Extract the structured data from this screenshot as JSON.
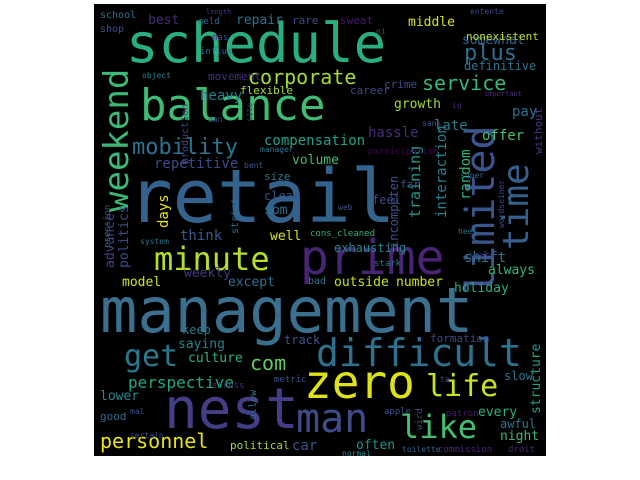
{
  "wordcloud": {
    "background": "#000000",
    "words": [
      {
        "id": "management",
        "text": "management",
        "color": "#3b6f8e"
      },
      {
        "id": "retail",
        "text": "retail",
        "color": "#33638d"
      },
      {
        "id": "schedule",
        "text": "schedule",
        "color": "#29af7f"
      },
      {
        "id": "balance",
        "text": "balance",
        "color": "#3fbc73"
      },
      {
        "id": "nest",
        "text": "nest",
        "color": "#433e85"
      },
      {
        "id": "prime",
        "text": "prime",
        "color": "#482475"
      },
      {
        "id": "zero",
        "text": "zero",
        "color": "#dde318"
      },
      {
        "id": "man",
        "text": "man",
        "color": "#3e4c8a"
      },
      {
        "id": "limited",
        "text": "limited",
        "color": "#3a548c"
      },
      {
        "id": "time",
        "text": "time",
        "color": "#355f8d"
      },
      {
        "id": "weekend",
        "text": "weekend",
        "color": "#3aba76"
      },
      {
        "id": "difficult",
        "text": "difficult",
        "color": "#2d718e"
      },
      {
        "id": "minute",
        "text": "minute",
        "color": "#b5de2b"
      },
      {
        "id": "like",
        "text": "like",
        "color": "#44bf70"
      },
      {
        "id": "life",
        "text": "life",
        "color": "#cae11f"
      },
      {
        "id": "get",
        "text": "get",
        "color": "#2a778e"
      },
      {
        "id": "corporate",
        "text": "corporate",
        "color": "#a2da37"
      },
      {
        "id": "service",
        "text": "service",
        "color": "#37b878"
      },
      {
        "id": "mobility",
        "text": "mobility",
        "color": "#2c738e"
      },
      {
        "id": "plus",
        "text": "plus",
        "color": "#2e6e8e"
      },
      {
        "id": "com",
        "text": "com",
        "color": "#63cb5f"
      },
      {
        "id": "personnel",
        "text": "personnel",
        "color": "#e7e419"
      },
      {
        "id": "perspective",
        "text": "perspective",
        "color": "#22a785"
      },
      {
        "id": "compensation",
        "text": "compensation",
        "color": "#1fa088"
      },
      {
        "id": "repetitive",
        "text": "repetitive",
        "color": "#3e4989"
      },
      {
        "id": "heavy",
        "text": "heavy",
        "color": "#277f8e"
      },
      {
        "id": "growth",
        "text": "growth",
        "color": "#a0da39"
      },
      {
        "id": "hassle",
        "text": "hassle",
        "color": "#472d7b"
      },
      {
        "id": "late",
        "text": "late",
        "color": "#287c8e"
      },
      {
        "id": "offer",
        "text": "offer",
        "color": "#46c06f"
      },
      {
        "id": "pay",
        "text": "pay",
        "color": "#2e6f8e"
      },
      {
        "id": "volume",
        "text": "volume",
        "color": "#3ebc74"
      },
      {
        "id": "repair",
        "text": "repair",
        "color": "#2c718e"
      },
      {
        "id": "best",
        "text": "best",
        "color": "#472c7a"
      },
      {
        "id": "middle",
        "text": "middle",
        "color": "#d5e21a"
      },
      {
        "id": "somewhat",
        "text": "somewhat",
        "color": "#31668e"
      },
      {
        "id": "definitive",
        "text": "definitive",
        "color": "#2a768e"
      },
      {
        "id": "nonexistent",
        "text": "nonexistent",
        "color": "#c2df23"
      },
      {
        "id": "interaction",
        "text": "interaction",
        "color": "#26828e"
      },
      {
        "id": "training",
        "text": "training",
        "color": "#1f988b"
      },
      {
        "id": "random",
        "text": "random",
        "color": "#2fb47c"
      },
      {
        "id": "incompeten",
        "text": "incompeten",
        "color": "#3b528b"
      },
      {
        "id": "shift",
        "text": "shift",
        "color": "#2c728e"
      },
      {
        "id": "always",
        "text": "always",
        "color": "#34b679"
      },
      {
        "id": "holiday",
        "text": "holiday",
        "color": "#26ad81"
      },
      {
        "id": "number",
        "text": "number",
        "color": "#cde11d"
      },
      {
        "id": "outside",
        "text": "outside",
        "color": "#c8e020"
      },
      {
        "id": "except",
        "text": "except",
        "color": "#2d708e"
      },
      {
        "id": "model",
        "text": "model",
        "color": "#d2e21b"
      },
      {
        "id": "weekly",
        "text": "weekly",
        "color": "#443983"
      },
      {
        "id": "think",
        "text": "think",
        "color": "#38598c"
      },
      {
        "id": "days",
        "text": "days",
        "color": "#e5e419"
      },
      {
        "id": "advance",
        "text": "advance",
        "color": "#414487"
      },
      {
        "id": "politics",
        "text": "politics",
        "color": "#3d4e8a"
      },
      {
        "id": "clear",
        "text": "clear",
        "color": "#3b528b"
      },
      {
        "id": "feel",
        "text": "feel",
        "color": "#3e4a89"
      },
      {
        "id": "far",
        "text": "far",
        "color": "#3c4f8a"
      },
      {
        "id": "som",
        "text": "som",
        "color": "#2c738e"
      },
      {
        "id": "well",
        "text": "well",
        "color": "#d8e219"
      },
      {
        "id": "exhausting",
        "text": "exhausting",
        "color": "#24878e"
      },
      {
        "id": "cons_cleaned",
        "text": "cons_cleaned",
        "color": "#2ab07f"
      },
      {
        "id": "keep",
        "text": "keep",
        "color": "#2a788e"
      },
      {
        "id": "saying",
        "text": "saying",
        "color": "#26828e"
      },
      {
        "id": "culture",
        "text": "culture",
        "color": "#2db27d"
      },
      {
        "id": "track",
        "text": "track",
        "color": "#3b528b"
      },
      {
        "id": "lower",
        "text": "lower",
        "color": "#23888e"
      },
      {
        "id": "formation",
        "text": "formation",
        "color": "#414487"
      },
      {
        "id": "every",
        "text": "every",
        "color": "#2cb17e"
      },
      {
        "id": "night",
        "text": "night",
        "color": "#38b977"
      },
      {
        "id": "often",
        "text": "often",
        "color": "#218f8d"
      },
      {
        "id": "car",
        "text": "car",
        "color": "#3b528b"
      },
      {
        "id": "political",
        "text": "political",
        "color": "#9fda3a"
      },
      {
        "id": "awful",
        "text": "awful",
        "color": "#2c738e"
      },
      {
        "id": "structure",
        "text": "structure",
        "color": "#1f9e89"
      },
      {
        "id": "slow",
        "text": "slow",
        "color": "#2a768e"
      },
      {
        "id": "size",
        "text": "size",
        "color": "#2b758e"
      },
      {
        "id": "movement",
        "text": "movement",
        "color": "#46327e"
      },
      {
        "id": "flexible",
        "text": "flexible",
        "color": "#a8db34"
      },
      {
        "id": "career",
        "text": "career",
        "color": "#3f4889"
      },
      {
        "id": "crime",
        "text": "crime",
        "color": "#3d4d8a"
      },
      {
        "id": "sweat",
        "text": "sweat",
        "color": "#48186a"
      },
      {
        "id": "rare",
        "text": "rare",
        "color": "#3e4c8a"
      },
      {
        "id": "school",
        "text": "school",
        "color": "#2c728e"
      },
      {
        "id": "shop",
        "text": "shop",
        "color": "#3b528b"
      },
      {
        "id": "geld",
        "text": "geld",
        "color": "#2f6c8e"
      },
      {
        "id": "length",
        "text": "length",
        "color": "#472f7d"
      },
      {
        "id": "influx",
        "text": "influx",
        "color": "#306a8e"
      },
      {
        "id": "mas",
        "text": "mas",
        "color": "#404588"
      },
      {
        "id": "object",
        "text": "object",
        "color": "#25848e"
      },
      {
        "id": "production",
        "text": "production",
        "color": "#3f4788"
      },
      {
        "id": "manager",
        "text": "manager",
        "color": "#2c728e"
      },
      {
        "id": "entente",
        "text": "entente",
        "color": "#3f4788"
      },
      {
        "id": "important",
        "text": "important",
        "color": "#472a7a"
      },
      {
        "id": "without",
        "text": "without",
        "color": "#453882"
      },
      {
        "id": "super",
        "text": "super",
        "color": "#2e6e8e"
      },
      {
        "id": "sans",
        "text": "sans",
        "color": "#3a548c"
      },
      {
        "id": "participation",
        "text": "participation",
        "color": "#440154"
      },
      {
        "id": "web",
        "text": "web",
        "color": "#3a548c"
      },
      {
        "id": "wordseiner",
        "text": "wordseiner",
        "color": "#3e4a89"
      },
      {
        "id": "heel",
        "text": "heel",
        "color": "#2d718e"
      },
      {
        "id": "jours",
        "text": "jours",
        "color": "#453781"
      },
      {
        "id": "stark",
        "text": "stark",
        "color": "#2a788e"
      },
      {
        "id": "bad",
        "text": "bad",
        "color": "#2a788e"
      },
      {
        "id": "system",
        "text": "system",
        "color": "#2b748e"
      },
      {
        "id": "pression",
        "text": "pression",
        "color": "#3b528b"
      },
      {
        "id": "metric",
        "text": "metric",
        "color": "#3b528b"
      },
      {
        "id": "stress",
        "text": "stress",
        "color": "#472c7a"
      },
      {
        "id": "allow",
        "text": "allow",
        "color": "#2d708e"
      },
      {
        "id": "good",
        "text": "good",
        "color": "#2f6b8e"
      },
      {
        "id": "mal",
        "text": "mal",
        "color": "#3b528b"
      },
      {
        "id": "certain",
        "text": "certain",
        "color": "#3e4c8a"
      },
      {
        "id": "normal",
        "text": "normal",
        "color": "#238a8d"
      },
      {
        "id": "toilette",
        "text": "toilette",
        "color": "#31688e"
      },
      {
        "id": "commission",
        "text": "commission",
        "color": "#482979"
      },
      {
        "id": "droit",
        "text": "droit",
        "color": "#482475"
      },
      {
        "id": "apple",
        "text": "apple",
        "color": "#3b528b"
      },
      {
        "id": "patron",
        "text": "patron",
        "color": "#48186a"
      },
      {
        "id": "wird",
        "text": "wird",
        "color": "#3e4c8a"
      },
      {
        "id": "bent",
        "text": "bent",
        "color": "#3b528b"
      },
      {
        "id": "strict",
        "text": "strict",
        "color": "#2c728e"
      },
      {
        "id": "dun",
        "text": "dun",
        "color": "#3e4c8a"
      },
      {
        "id": "site",
        "text": "site",
        "color": "#482173"
      },
      {
        "id": "ni",
        "text": "ni",
        "color": "#3e4c8a"
      },
      {
        "id": "ta",
        "text": "ta",
        "color": "#3e4c8a"
      },
      {
        "id": "ig",
        "text": "ig",
        "color": "#482173"
      }
    ]
  }
}
